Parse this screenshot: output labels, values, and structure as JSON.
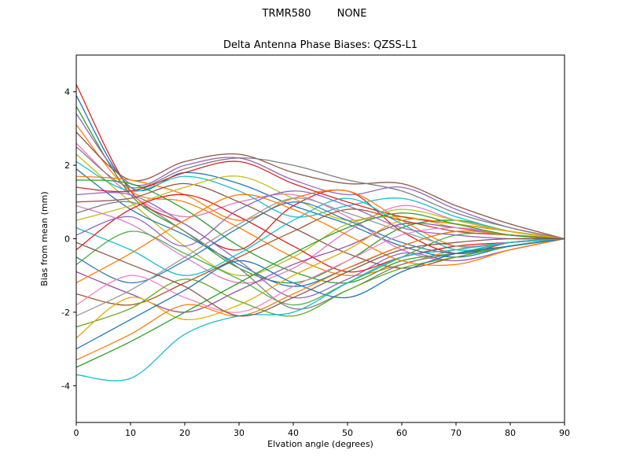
{
  "header": {
    "suptitle": "TRMR580        NONE"
  },
  "chart_data": {
    "type": "line",
    "title": "Delta Antenna Phase Biases: QZSS-L1",
    "xlabel": "Elvation angle (degrees)",
    "ylabel": "Bias from mean (mm)",
    "xlim": [
      0,
      90
    ],
    "ylim": [
      -5,
      5
    ],
    "xticks": [
      0,
      10,
      20,
      30,
      40,
      50,
      60,
      70,
      80,
      90
    ],
    "yticks": [
      -4,
      -2,
      0,
      2,
      4
    ],
    "grid": false,
    "legend": "none",
    "x": [
      0,
      10,
      20,
      30,
      40,
      50,
      60,
      70,
      80,
      90
    ],
    "series": [
      {
        "name": "s1",
        "color": "#d62728",
        "values": [
          4.2,
          1.3,
          0.4,
          -0.3,
          0.9,
          1.3,
          0.2,
          -0.4,
          -0.1,
          0
        ]
      },
      {
        "name": "s2",
        "color": "#1f77b4",
        "values": [
          3.9,
          1.4,
          1.8,
          1.5,
          0.9,
          0.4,
          -0.2,
          -0.5,
          -0.2,
          0
        ]
      },
      {
        "name": "s3",
        "color": "#2ca02c",
        "values": [
          3.6,
          1.2,
          0.2,
          -0.8,
          -1.2,
          -0.6,
          0.3,
          0.5,
          0.2,
          0
        ]
      },
      {
        "name": "s4",
        "color": "#9467bd",
        "values": [
          3.4,
          1.5,
          2.0,
          2.2,
          1.6,
          1.2,
          1.4,
          0.8,
          0.3,
          0
        ]
      },
      {
        "name": "s5",
        "color": "#ff7f0e",
        "values": [
          3.1,
          1.3,
          1.0,
          0.3,
          -0.5,
          -1.0,
          -0.7,
          -0.3,
          -0.1,
          0
        ]
      },
      {
        "name": "s6",
        "color": "#8c564b",
        "values": [
          2.9,
          1.6,
          2.1,
          2.3,
          1.8,
          1.5,
          1.5,
          0.9,
          0.4,
          0
        ]
      },
      {
        "name": "s7",
        "color": "#e377c2",
        "values": [
          2.6,
          1.2,
          0.6,
          1.0,
          1.2,
          0.6,
          -0.3,
          -0.6,
          -0.3,
          0
        ]
      },
      {
        "name": "s8",
        "color": "#7f7f7f",
        "values": [
          2.5,
          1.4,
          1.9,
          2.2,
          2.0,
          1.6,
          1.3,
          0.7,
          0.3,
          0
        ]
      },
      {
        "name": "s9",
        "color": "#bcbd22",
        "values": [
          2.3,
          1.0,
          -0.2,
          -1.0,
          -0.5,
          0.4,
          0.6,
          0.3,
          0.1,
          0
        ]
      },
      {
        "name": "s10",
        "color": "#17becf",
        "values": [
          2.1,
          1.3,
          1.7,
          1.3,
          0.6,
          0.9,
          1.1,
          0.6,
          0.2,
          0
        ]
      },
      {
        "name": "s11",
        "color": "#1f77b4",
        "values": [
          1.9,
          0.8,
          0.1,
          -0.7,
          -1.3,
          -0.8,
          -0.2,
          0.2,
          0.1,
          0
        ]
      },
      {
        "name": "s12",
        "color": "#ff7f0e",
        "values": [
          1.7,
          1.6,
          1.2,
          0.5,
          1.1,
          1.3,
          0.5,
          -0.2,
          -0.1,
          0
        ]
      },
      {
        "name": "s13",
        "color": "#2ca02c",
        "values": [
          1.6,
          1.5,
          0.8,
          -0.2,
          -0.9,
          -1.2,
          -0.6,
          -0.4,
          -0.2,
          0
        ]
      },
      {
        "name": "s14",
        "color": "#d62728",
        "values": [
          1.4,
          1.3,
          1.8,
          2.1,
          1.5,
          1.0,
          0.6,
          0.4,
          0.2,
          0
        ]
      },
      {
        "name": "s15",
        "color": "#9467bd",
        "values": [
          1.2,
          1.2,
          0.4,
          -0.6,
          -1.6,
          -1.1,
          -0.4,
          -0.6,
          -0.3,
          0
        ]
      },
      {
        "name": "s16",
        "color": "#8c564b",
        "values": [
          1.0,
          1.1,
          1.5,
          1.0,
          0.3,
          -0.4,
          -0.8,
          -0.5,
          -0.2,
          0
        ]
      },
      {
        "name": "s17",
        "color": "#e377c2",
        "values": [
          0.9,
          0.4,
          -0.5,
          -1.2,
          -0.8,
          0.2,
          0.9,
          0.5,
          0.2,
          0
        ]
      },
      {
        "name": "s18",
        "color": "#7f7f7f",
        "values": [
          0.7,
          1.0,
          0.2,
          -0.8,
          -1.9,
          -1.4,
          -0.7,
          -0.4,
          -0.1,
          0
        ]
      },
      {
        "name": "s19",
        "color": "#bcbd22",
        "values": [
          0.5,
          0.9,
          1.4,
          1.7,
          1.1,
          0.5,
          0.8,
          0.5,
          0.2,
          0
        ]
      },
      {
        "name": "s20",
        "color": "#17becf",
        "values": [
          0.3,
          -0.3,
          -1.0,
          -0.4,
          0.5,
          1.1,
          0.4,
          -0.3,
          -0.1,
          0
        ]
      },
      {
        "name": "s21",
        "color": "#e41a1c",
        "values": [
          -0.3,
          0.8,
          1.2,
          0.6,
          -0.2,
          -0.9,
          -0.5,
          -0.2,
          -0.1,
          0
        ]
      },
      {
        "name": "s22",
        "color": "#377eb8",
        "values": [
          -0.5,
          -1.2,
          -0.6,
          0.3,
          1.0,
          0.5,
          -0.1,
          -0.4,
          -0.2,
          0
        ]
      },
      {
        "name": "s23",
        "color": "#4daf4a",
        "values": [
          -0.7,
          0.2,
          -0.4,
          -1.1,
          -1.8,
          -1.2,
          -0.5,
          0.1,
          0.1,
          0
        ]
      },
      {
        "name": "s24",
        "color": "#984ea3",
        "values": [
          -0.9,
          -1.5,
          -2.0,
          -1.4,
          -0.7,
          -0.2,
          0.4,
          0.3,
          0.1,
          0
        ]
      },
      {
        "name": "s25",
        "color": "#ff7f00",
        "values": [
          -1.2,
          -0.4,
          0.5,
          1.2,
          0.8,
          0.1,
          -0.6,
          -0.7,
          -0.3,
          0
        ]
      },
      {
        "name": "s26",
        "color": "#a65628",
        "values": [
          -1.5,
          -1.8,
          -1.2,
          -0.5,
          0.2,
          0.8,
          0.5,
          0.2,
          0.1,
          0
        ]
      },
      {
        "name": "s27",
        "color": "#f781bf",
        "values": [
          -1.8,
          -1.0,
          -1.6,
          -2.0,
          -1.3,
          -0.6,
          0.1,
          0.3,
          0.1,
          0
        ]
      },
      {
        "name": "s28",
        "color": "#999999",
        "values": [
          -2.1,
          -1.4,
          -0.5,
          0.4,
          1.1,
          0.7,
          0.2,
          -0.2,
          -0.1,
          0
        ]
      },
      {
        "name": "s29",
        "color": "#66a61e",
        "values": [
          -2.4,
          -1.9,
          -1.1,
          -1.7,
          -2.1,
          -1.4,
          -0.8,
          -0.5,
          -0.2,
          0
        ]
      },
      {
        "name": "s30",
        "color": "#e6ab02",
        "values": [
          -2.7,
          -1.6,
          -2.2,
          -1.8,
          -1.0,
          -0.3,
          0.5,
          0.4,
          0.2,
          0
        ]
      },
      {
        "name": "s31",
        "color": "#1f77b4",
        "values": [
          -3.0,
          -2.2,
          -1.4,
          -0.6,
          -1.2,
          -1.6,
          -0.9,
          -0.4,
          -0.2,
          0
        ]
      },
      {
        "name": "s32",
        "color": "#ff7f0e",
        "values": [
          -3.3,
          -2.6,
          -1.8,
          -2.1,
          -1.5,
          -0.8,
          -0.2,
          0.2,
          0.1,
          0
        ]
      },
      {
        "name": "s33",
        "color": "#2ca02c",
        "values": [
          -3.5,
          -2.8,
          -2.0,
          -1.2,
          -0.4,
          0.3,
          0.7,
          0.4,
          0.1,
          0
        ]
      },
      {
        "name": "s34",
        "color": "#17becf",
        "values": [
          -3.7,
          -3.8,
          -2.6,
          -2.1,
          -2.0,
          -1.2,
          -0.5,
          -0.3,
          -0.1,
          0
        ]
      },
      {
        "name": "s35",
        "color": "#9467bd",
        "values": [
          0.1,
          0.6,
          -0.2,
          0.8,
          1.3,
          0.9,
          0.3,
          0.1,
          0.0,
          0
        ]
      },
      {
        "name": "s36",
        "color": "#8c564b",
        "values": [
          -0.1,
          -0.7,
          -1.3,
          -2.1,
          -1.6,
          -0.9,
          -0.3,
          -0.1,
          0.0,
          0
        ]
      }
    ]
  }
}
